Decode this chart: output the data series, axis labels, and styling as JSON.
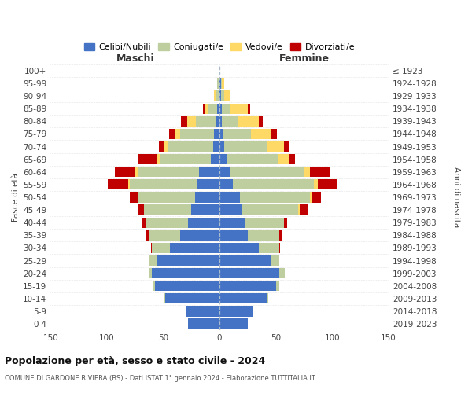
{
  "age_groups": [
    "0-4",
    "5-9",
    "10-14",
    "15-19",
    "20-24",
    "25-29",
    "30-34",
    "35-39",
    "40-44",
    "45-49",
    "50-54",
    "55-59",
    "60-64",
    "65-69",
    "70-74",
    "75-79",
    "80-84",
    "85-89",
    "90-94",
    "95-99",
    "100+"
  ],
  "birth_years": [
    "2019-2023",
    "2014-2018",
    "2009-2013",
    "2004-2008",
    "1999-2003",
    "1994-1998",
    "1989-1993",
    "1984-1988",
    "1979-1983",
    "1974-1978",
    "1969-1973",
    "1964-1968",
    "1959-1963",
    "1954-1958",
    "1949-1953",
    "1944-1948",
    "1939-1943",
    "1934-1938",
    "1929-1933",
    "1924-1928",
    "≤ 1923"
  ],
  "male_celibi": [
    28,
    30,
    48,
    57,
    60,
    55,
    44,
    35,
    28,
    25,
    22,
    20,
    18,
    8,
    6,
    5,
    3,
    2,
    1,
    1,
    0
  ],
  "male_coniugati": [
    0,
    0,
    1,
    2,
    3,
    8,
    16,
    28,
    38,
    42,
    50,
    60,
    55,
    45,
    40,
    30,
    18,
    8,
    2,
    1,
    0
  ],
  "male_vedovi": [
    0,
    0,
    0,
    0,
    0,
    0,
    0,
    0,
    0,
    0,
    0,
    1,
    2,
    2,
    3,
    5,
    8,
    3,
    2,
    0,
    0
  ],
  "male_div": [
    0,
    0,
    0,
    0,
    0,
    0,
    1,
    2,
    3,
    5,
    8,
    18,
    18,
    18,
    5,
    5,
    5,
    2,
    0,
    0,
    0
  ],
  "female_nubili": [
    25,
    30,
    42,
    50,
    53,
    45,
    35,
    25,
    22,
    20,
    18,
    12,
    10,
    7,
    4,
    3,
    2,
    2,
    1,
    1,
    0
  ],
  "female_coniugate": [
    0,
    0,
    1,
    3,
    5,
    8,
    18,
    28,
    35,
    50,
    62,
    72,
    65,
    45,
    38,
    25,
    15,
    8,
    3,
    1,
    0
  ],
  "female_vedove": [
    0,
    0,
    0,
    0,
    0,
    0,
    0,
    0,
    0,
    1,
    2,
    3,
    5,
    10,
    15,
    18,
    18,
    15,
    5,
    2,
    0
  ],
  "female_div": [
    0,
    0,
    0,
    0,
    0,
    0,
    1,
    2,
    3,
    8,
    8,
    18,
    18,
    5,
    5,
    5,
    3,
    2,
    0,
    0,
    0
  ],
  "colors": {
    "celibi_nubili": "#4472C4",
    "coniugati": "#BFCE9E",
    "vedovi": "#FFD966",
    "divorziati": "#C00000"
  },
  "xlim": 150,
  "title": "Popolazione per età, sesso e stato civile - 2024",
  "subtitle": "COMUNE DI GARDONE RIVIERA (BS) - Dati ISTAT 1° gennaio 2024 - Elaborazione TUTTITALIA.IT",
  "ylabel_left": "Fasce di età",
  "ylabel_right": "Anni di nascita",
  "label_maschi": "Maschi",
  "label_femmine": "Femmine",
  "legend_labels": [
    "Celibi/Nubili",
    "Coniugati/e",
    "Vedovi/e",
    "Divorziati/e"
  ]
}
